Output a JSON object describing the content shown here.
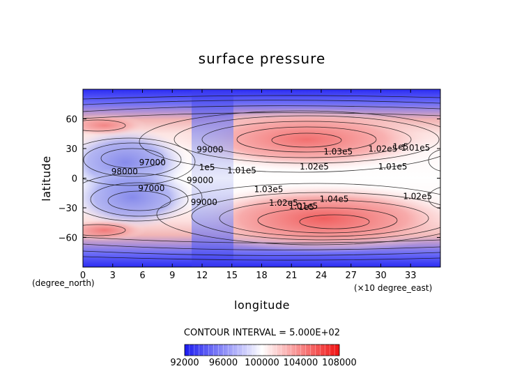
{
  "chart_data": {
    "type": "heatmap",
    "title": "surface pressure",
    "xlabel": "longitude",
    "ylabel": "latitude",
    "x_unit_note": "(×10 degree_east)",
    "y_unit_note": "(degree_north)",
    "xlim": [
      0,
      36
    ],
    "ylim": [
      -90,
      90
    ],
    "xticks": [
      "0",
      "3",
      "6",
      "9",
      "12",
      "15",
      "18",
      "21",
      "24",
      "27",
      "30",
      "33"
    ],
    "yticks": [
      "60",
      "30",
      "0",
      "−30",
      "−60"
    ],
    "contour_interval_text": "CONTOUR INTERVAL = 5.000E+02",
    "colorbar": {
      "range": [
        92000,
        108000
      ],
      "tick_labels": [
        "92000",
        "96000",
        "100000",
        "104000",
        "108000"
      ],
      "low_color": "#2a2af0",
      "mid_color": "#ffffff",
      "high_color": "#f02020"
    },
    "contour_labels": [
      {
        "text": "98000",
        "lon": 4.2,
        "lat": 4
      },
      {
        "text": "97000",
        "lon": 7.0,
        "lat": 13
      },
      {
        "text": "97000",
        "lon": 6.9,
        "lat": -13
      },
      {
        "text": "99000",
        "lon": 12.8,
        "lat": 26
      },
      {
        "text": "1e5",
        "lon": 12.5,
        "lat": 8
      },
      {
        "text": "99000",
        "lon": 11.8,
        "lat": -5
      },
      {
        "text": "1.01e5",
        "lon": 16.0,
        "lat": 5
      },
      {
        "text": "1.02e5",
        "lon": 23.3,
        "lat": 9
      },
      {
        "text": "1.03e5",
        "lon": 25.7,
        "lat": 24
      },
      {
        "text": "1.02e5",
        "lon": 30.2,
        "lat": 27
      },
      {
        "text": "1.01e5",
        "lon": 33.5,
        "lat": 28
      },
      {
        "text": "1e5",
        "lon": 32.0,
        "lat": 29
      },
      {
        "text": "1.01e5",
        "lon": 31.2,
        "lat": 9
      },
      {
        "text": "1.03e5",
        "lon": 18.7,
        "lat": -14
      },
      {
        "text": "1.04e5",
        "lon": 25.3,
        "lat": -24
      },
      {
        "text": "1.02e5",
        "lon": 20.2,
        "lat": -28
      },
      {
        "text": "1.01e5",
        "lon": 22.2,
        "lat": -31
      },
      {
        "text": "1e5",
        "lon": 22.5,
        "lat": -32
      },
      {
        "text": "1.02e5",
        "lon": 33.7,
        "lat": -21
      },
      {
        "text": "99000",
        "lon": 12.2,
        "lat": -27
      }
    ]
  }
}
